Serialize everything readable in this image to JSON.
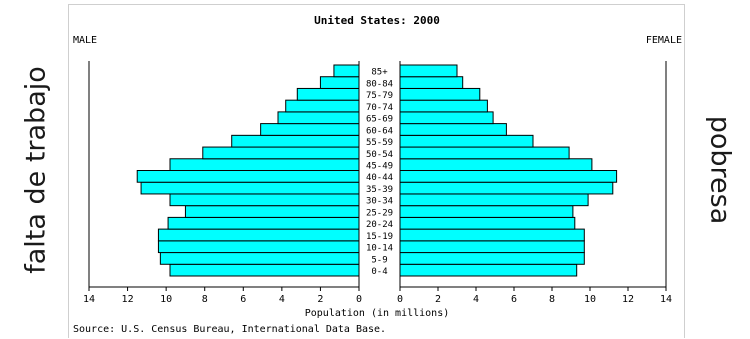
{
  "side_labels": {
    "left": "falta de trabajo",
    "right": "pobresa"
  },
  "chart_data": {
    "type": "bar",
    "subtype": "population-pyramid",
    "title": "United States: 2000",
    "left_heading": "MALE",
    "right_heading": "FEMALE",
    "xlabel": "Population (in millions)",
    "source": "Source: U.S. Census Bureau, International Data Base.",
    "xlim": [
      0,
      14
    ],
    "xticks": [
      14,
      12,
      10,
      8,
      6,
      4,
      2,
      0,
      2,
      4,
      6,
      8,
      10,
      12,
      14
    ],
    "categories": [
      "0-4",
      "5-9",
      "10-14",
      "15-19",
      "20-24",
      "25-29",
      "30-34",
      "35-39",
      "40-44",
      "45-49",
      "50-54",
      "55-59",
      "60-64",
      "65-69",
      "70-74",
      "75-79",
      "80-84",
      "85+"
    ],
    "series": [
      {
        "name": "MALE",
        "values": [
          9.8,
          10.3,
          10.4,
          10.4,
          9.9,
          9.0,
          9.8,
          11.3,
          11.5,
          9.8,
          8.1,
          6.6,
          5.1,
          4.2,
          3.8,
          3.2,
          2.0,
          1.3
        ]
      },
      {
        "name": "FEMALE",
        "values": [
          9.3,
          9.7,
          9.7,
          9.7,
          9.2,
          9.1,
          9.9,
          11.2,
          11.4,
          10.1,
          8.9,
          7.0,
          5.6,
          4.9,
          4.6,
          4.2,
          3.3,
          3.0
        ]
      }
    ],
    "colors": {
      "bar_fill": "#00ffff",
      "bar_stroke": "#000000",
      "text": "#000000"
    },
    "grid": false,
    "legend": "none"
  }
}
